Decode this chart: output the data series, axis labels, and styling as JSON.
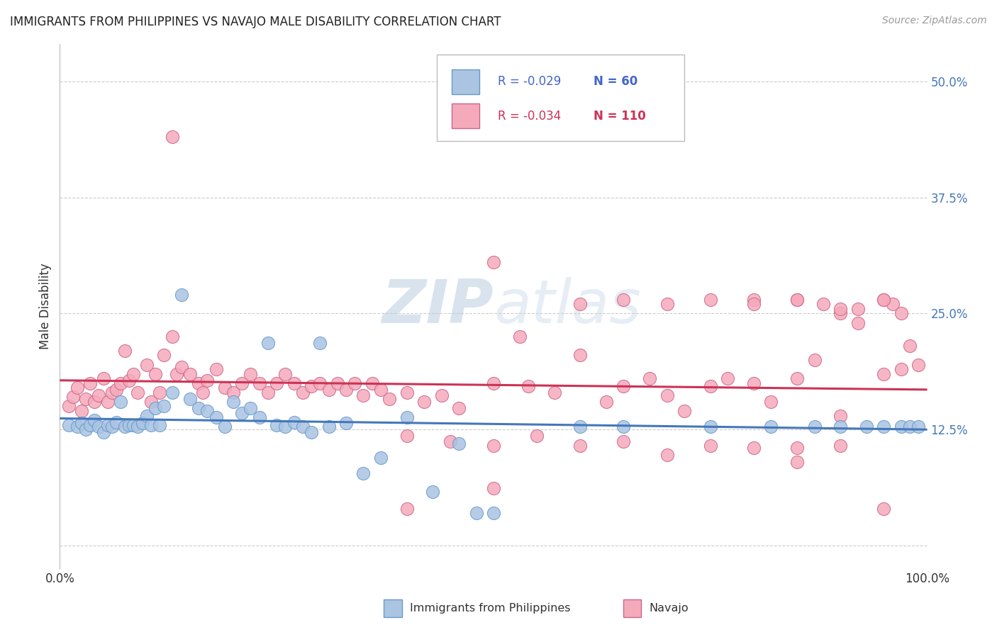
{
  "title": "IMMIGRANTS FROM PHILIPPINES VS NAVAJO MALE DISABILITY CORRELATION CHART",
  "source": "Source: ZipAtlas.com",
  "ylabel": "Male Disability",
  "xlim": [
    0.0,
    1.0
  ],
  "ylim": [
    -0.025,
    0.54
  ],
  "bg_color": "#ffffff",
  "grid_color": "#cccccc",
  "watermark_zip": "ZIP",
  "watermark_atlas": "atlas",
  "legend": {
    "blue_r": -0.029,
    "blue_n": 60,
    "pink_r": -0.034,
    "pink_n": 110,
    "label_blue": "Immigrants from Philippines",
    "label_pink": "Navajo"
  },
  "blue_scatter_fill": "#aac4e2",
  "blue_scatter_edge": "#6699cc",
  "pink_scatter_fill": "#f5aabb",
  "pink_scatter_edge": "#cc6688",
  "blue_line_color": "#4477bb",
  "pink_line_color": "#cc3355",
  "legend_text_color": "#4466cc",
  "ytick_color": "#4477bb",
  "source_color": "#999999",
  "blue_x": [
    0.01,
    0.02,
    0.025,
    0.03,
    0.035,
    0.04,
    0.045,
    0.05,
    0.055,
    0.06,
    0.065,
    0.07,
    0.075,
    0.08,
    0.085,
    0.09,
    0.095,
    0.1,
    0.105,
    0.11,
    0.115,
    0.12,
    0.13,
    0.14,
    0.15,
    0.16,
    0.17,
    0.18,
    0.19,
    0.2,
    0.21,
    0.22,
    0.23,
    0.24,
    0.25,
    0.26,
    0.27,
    0.28,
    0.29,
    0.3,
    0.31,
    0.33,
    0.35,
    0.37,
    0.4,
    0.43,
    0.46,
    0.48,
    0.6,
    0.65,
    0.75,
    0.82,
    0.87,
    0.9,
    0.93,
    0.95,
    0.97,
    0.98,
    0.99,
    0.5
  ],
  "blue_y": [
    0.13,
    0.128,
    0.132,
    0.125,
    0.13,
    0.135,
    0.128,
    0.122,
    0.13,
    0.128,
    0.133,
    0.155,
    0.128,
    0.13,
    0.13,
    0.128,
    0.132,
    0.14,
    0.13,
    0.148,
    0.13,
    0.15,
    0.165,
    0.27,
    0.158,
    0.148,
    0.145,
    0.138,
    0.128,
    0.155,
    0.143,
    0.148,
    0.138,
    0.218,
    0.13,
    0.128,
    0.133,
    0.128,
    0.122,
    0.218,
    0.128,
    0.132,
    0.078,
    0.095,
    0.138,
    0.058,
    0.11,
    0.035,
    0.128,
    0.128,
    0.128,
    0.128,
    0.128,
    0.128,
    0.128,
    0.128,
    0.128,
    0.128,
    0.128,
    0.035
  ],
  "pink_x": [
    0.01,
    0.015,
    0.02,
    0.025,
    0.03,
    0.035,
    0.04,
    0.045,
    0.05,
    0.055,
    0.06,
    0.065,
    0.07,
    0.075,
    0.08,
    0.085,
    0.09,
    0.1,
    0.105,
    0.11,
    0.115,
    0.12,
    0.13,
    0.135,
    0.14,
    0.15,
    0.16,
    0.165,
    0.17,
    0.18,
    0.19,
    0.2,
    0.21,
    0.22,
    0.23,
    0.24,
    0.25,
    0.26,
    0.27,
    0.28,
    0.29,
    0.3,
    0.31,
    0.32,
    0.33,
    0.34,
    0.35,
    0.36,
    0.37,
    0.38,
    0.4,
    0.42,
    0.44,
    0.46,
    0.5,
    0.53,
    0.54,
    0.57,
    0.6,
    0.63,
    0.65,
    0.68,
    0.7,
    0.72,
    0.75,
    0.77,
    0.8,
    0.82,
    0.85,
    0.87,
    0.9,
    0.92,
    0.95,
    0.97,
    0.98,
    0.99,
    0.13,
    0.5,
    0.8,
    0.85,
    0.88,
    0.92,
    0.95,
    0.96,
    0.97,
    0.6,
    0.65,
    0.7,
    0.75,
    0.8,
    0.85,
    0.9,
    0.95,
    0.4,
    0.45,
    0.5,
    0.55,
    0.6,
    0.65,
    0.85,
    0.9,
    0.7,
    0.75,
    0.8,
    0.85,
    0.9,
    0.95,
    0.4,
    0.5
  ],
  "pink_y": [
    0.15,
    0.16,
    0.17,
    0.145,
    0.158,
    0.175,
    0.155,
    0.162,
    0.18,
    0.155,
    0.165,
    0.168,
    0.175,
    0.21,
    0.178,
    0.185,
    0.165,
    0.195,
    0.155,
    0.185,
    0.165,
    0.205,
    0.225,
    0.185,
    0.192,
    0.185,
    0.175,
    0.165,
    0.178,
    0.19,
    0.17,
    0.165,
    0.175,
    0.185,
    0.175,
    0.165,
    0.175,
    0.185,
    0.175,
    0.165,
    0.172,
    0.175,
    0.168,
    0.175,
    0.168,
    0.175,
    0.162,
    0.175,
    0.168,
    0.158,
    0.165,
    0.155,
    0.162,
    0.148,
    0.175,
    0.225,
    0.172,
    0.165,
    0.205,
    0.155,
    0.172,
    0.18,
    0.162,
    0.145,
    0.172,
    0.18,
    0.175,
    0.155,
    0.18,
    0.2,
    0.25,
    0.24,
    0.185,
    0.19,
    0.215,
    0.195,
    0.44,
    0.305,
    0.265,
    0.265,
    0.26,
    0.255,
    0.265,
    0.26,
    0.25,
    0.26,
    0.265,
    0.26,
    0.265,
    0.26,
    0.265,
    0.255,
    0.265,
    0.118,
    0.112,
    0.108,
    0.118,
    0.108,
    0.112,
    0.105,
    0.108,
    0.098,
    0.108,
    0.105,
    0.09,
    0.14,
    0.04,
    0.04,
    0.062
  ]
}
